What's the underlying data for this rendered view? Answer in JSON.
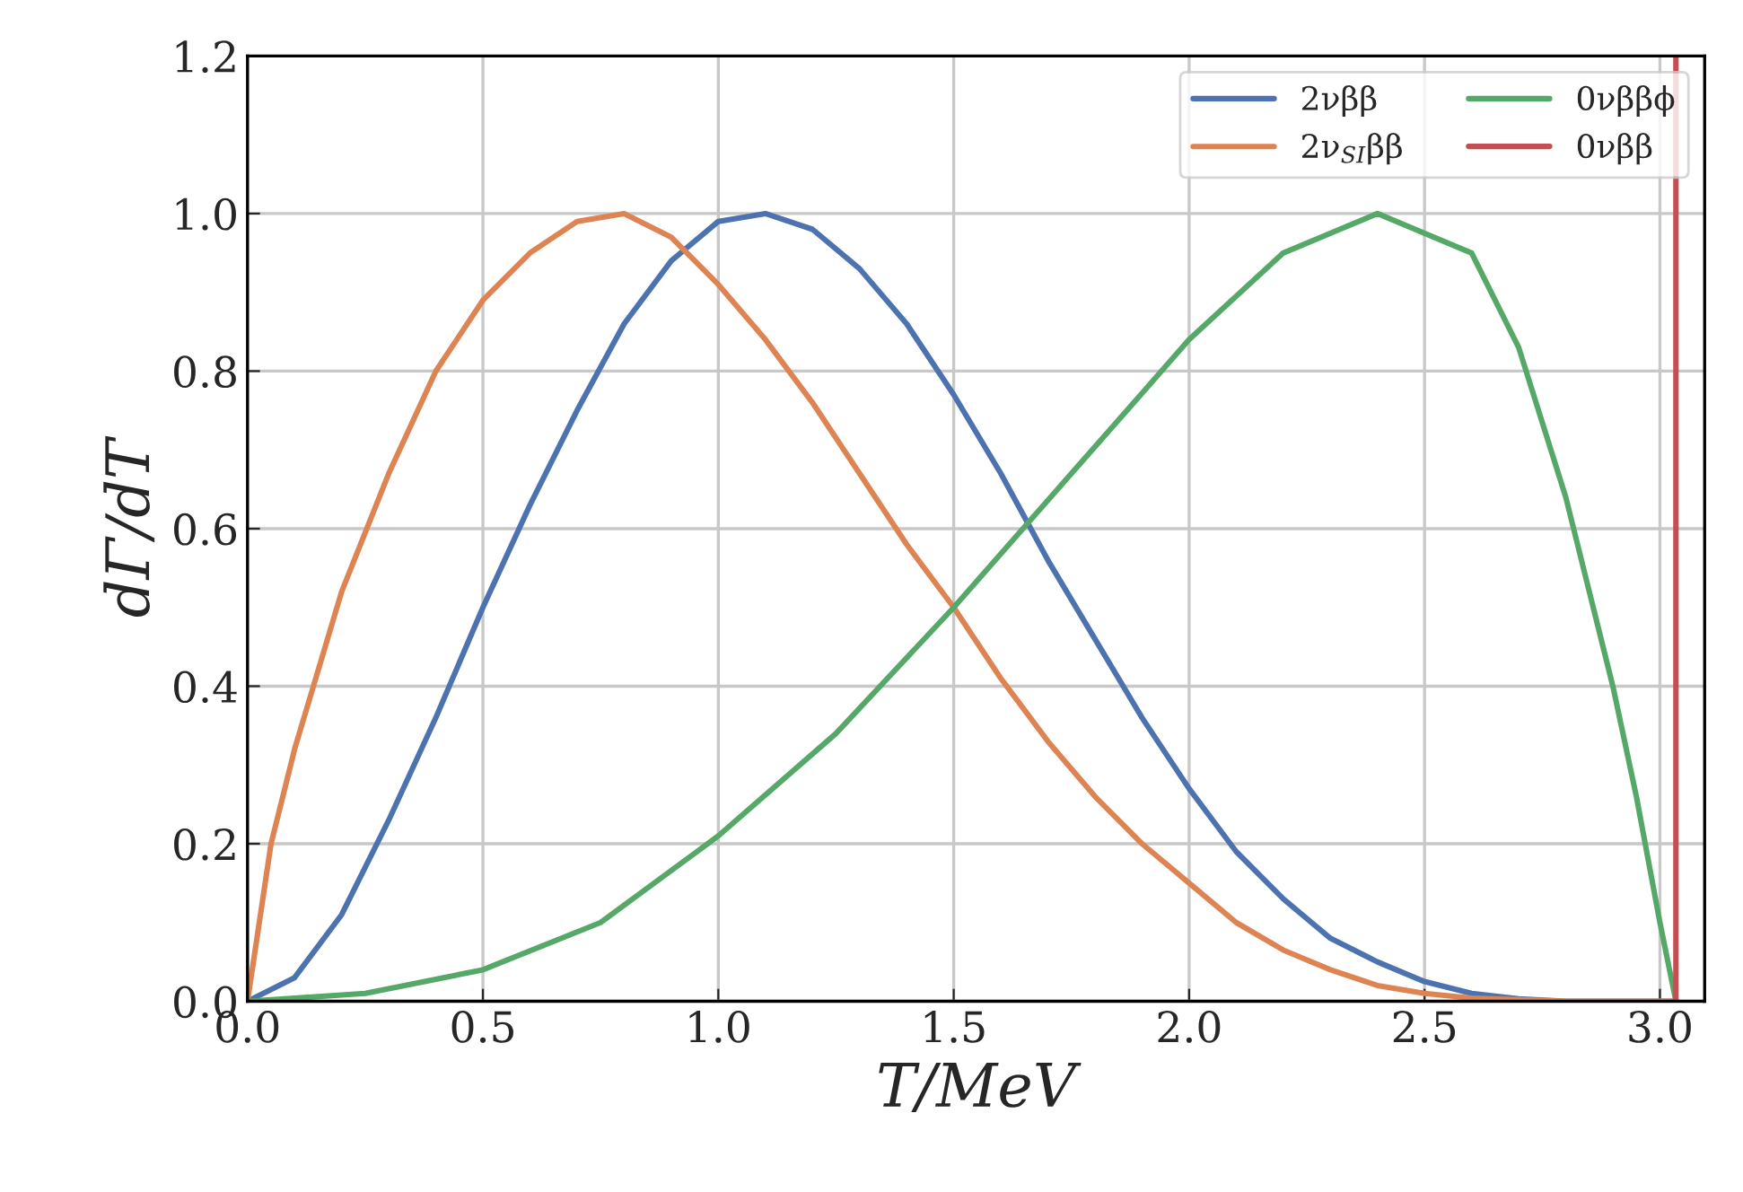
{
  "chart_data": {
    "type": "line",
    "xlabel": "T/MeV",
    "ylabel": "dΓ/dT",
    "xlim": [
      0,
      3.095
    ],
    "ylim": [
      0,
      1.2
    ],
    "xticks": [
      {
        "value": 0,
        "label": "0.0"
      },
      {
        "value": 0.5,
        "label": "0.5"
      },
      {
        "value": 1,
        "label": "1.0"
      },
      {
        "value": 1.5,
        "label": "1.5"
      },
      {
        "value": 2,
        "label": "2.0"
      },
      {
        "value": 2.5,
        "label": "2.5"
      },
      {
        "value": 3,
        "label": "3.0"
      }
    ],
    "yticks": [
      {
        "value": 0,
        "label": "0.0"
      },
      {
        "value": 0.2,
        "label": "0.2"
      },
      {
        "value": 0.4,
        "label": "0.4"
      },
      {
        "value": 0.6,
        "label": "0.6"
      },
      {
        "value": 0.8,
        "label": "0.8"
      },
      {
        "value": 1,
        "label": "1.0"
      },
      {
        "value": 1.2,
        "label": "1.2"
      }
    ],
    "grid": true,
    "legend": "top right",
    "marker": "none",
    "line_style": "solid",
    "series": [
      {
        "name": "2νββ",
        "color": "#4c72b0",
        "x": [
          0,
          0.1,
          0.2,
          0.3,
          0.4,
          0.5,
          0.6,
          0.7,
          0.8,
          0.9,
          1.0,
          1.1,
          1.2,
          1.3,
          1.4,
          1.5,
          1.6,
          1.7,
          1.8,
          1.9,
          2.0,
          2.1,
          2.2,
          2.3,
          2.4,
          2.5,
          2.6,
          2.7,
          2.8,
          3.034
        ],
        "values": [
          0,
          0.03,
          0.11,
          0.23,
          0.36,
          0.5,
          0.63,
          0.75,
          0.86,
          0.94,
          0.99,
          1.0,
          0.98,
          0.93,
          0.86,
          0.77,
          0.67,
          0.56,
          0.46,
          0.36,
          0.27,
          0.19,
          0.13,
          0.08,
          0.05,
          0.025,
          0.01,
          0.003,
          0,
          0
        ]
      },
      {
        "name": "2ν$_{SI}$ββ",
        "color": "#dd8452",
        "x": [
          0,
          0.05,
          0.1,
          0.2,
          0.3,
          0.4,
          0.5,
          0.6,
          0.7,
          0.8,
          0.9,
          1.0,
          1.1,
          1.2,
          1.3,
          1.4,
          1.5,
          1.6,
          1.7,
          1.8,
          1.9,
          2.0,
          2.1,
          2.2,
          2.3,
          2.4,
          2.5,
          2.6,
          2.8,
          3.034
        ],
        "values": [
          0,
          0.2,
          0.32,
          0.52,
          0.67,
          0.8,
          0.89,
          0.95,
          0.99,
          1.0,
          0.97,
          0.91,
          0.84,
          0.76,
          0.67,
          0.58,
          0.5,
          0.41,
          0.33,
          0.26,
          0.2,
          0.15,
          0.1,
          0.065,
          0.04,
          0.02,
          0.01,
          0.004,
          0,
          0
        ]
      },
      {
        "name": "0νββϕ",
        "color": "#55a868",
        "x": [
          0,
          0.25,
          0.5,
          0.75,
          1.0,
          1.25,
          1.5,
          1.75,
          2.0,
          2.2,
          2.4,
          2.6,
          2.7,
          2.8,
          2.9,
          2.95,
          3.0,
          3.034
        ],
        "values": [
          0,
          0.01,
          0.04,
          0.1,
          0.21,
          0.34,
          0.5,
          0.67,
          0.84,
          0.95,
          1.0,
          0.95,
          0.83,
          0.64,
          0.4,
          0.26,
          0.1,
          0
        ]
      },
      {
        "name": "0νββ",
        "color": "#c44e52",
        "x": [
          3.034,
          3.034
        ],
        "values": [
          0,
          1.2
        ]
      }
    ]
  }
}
